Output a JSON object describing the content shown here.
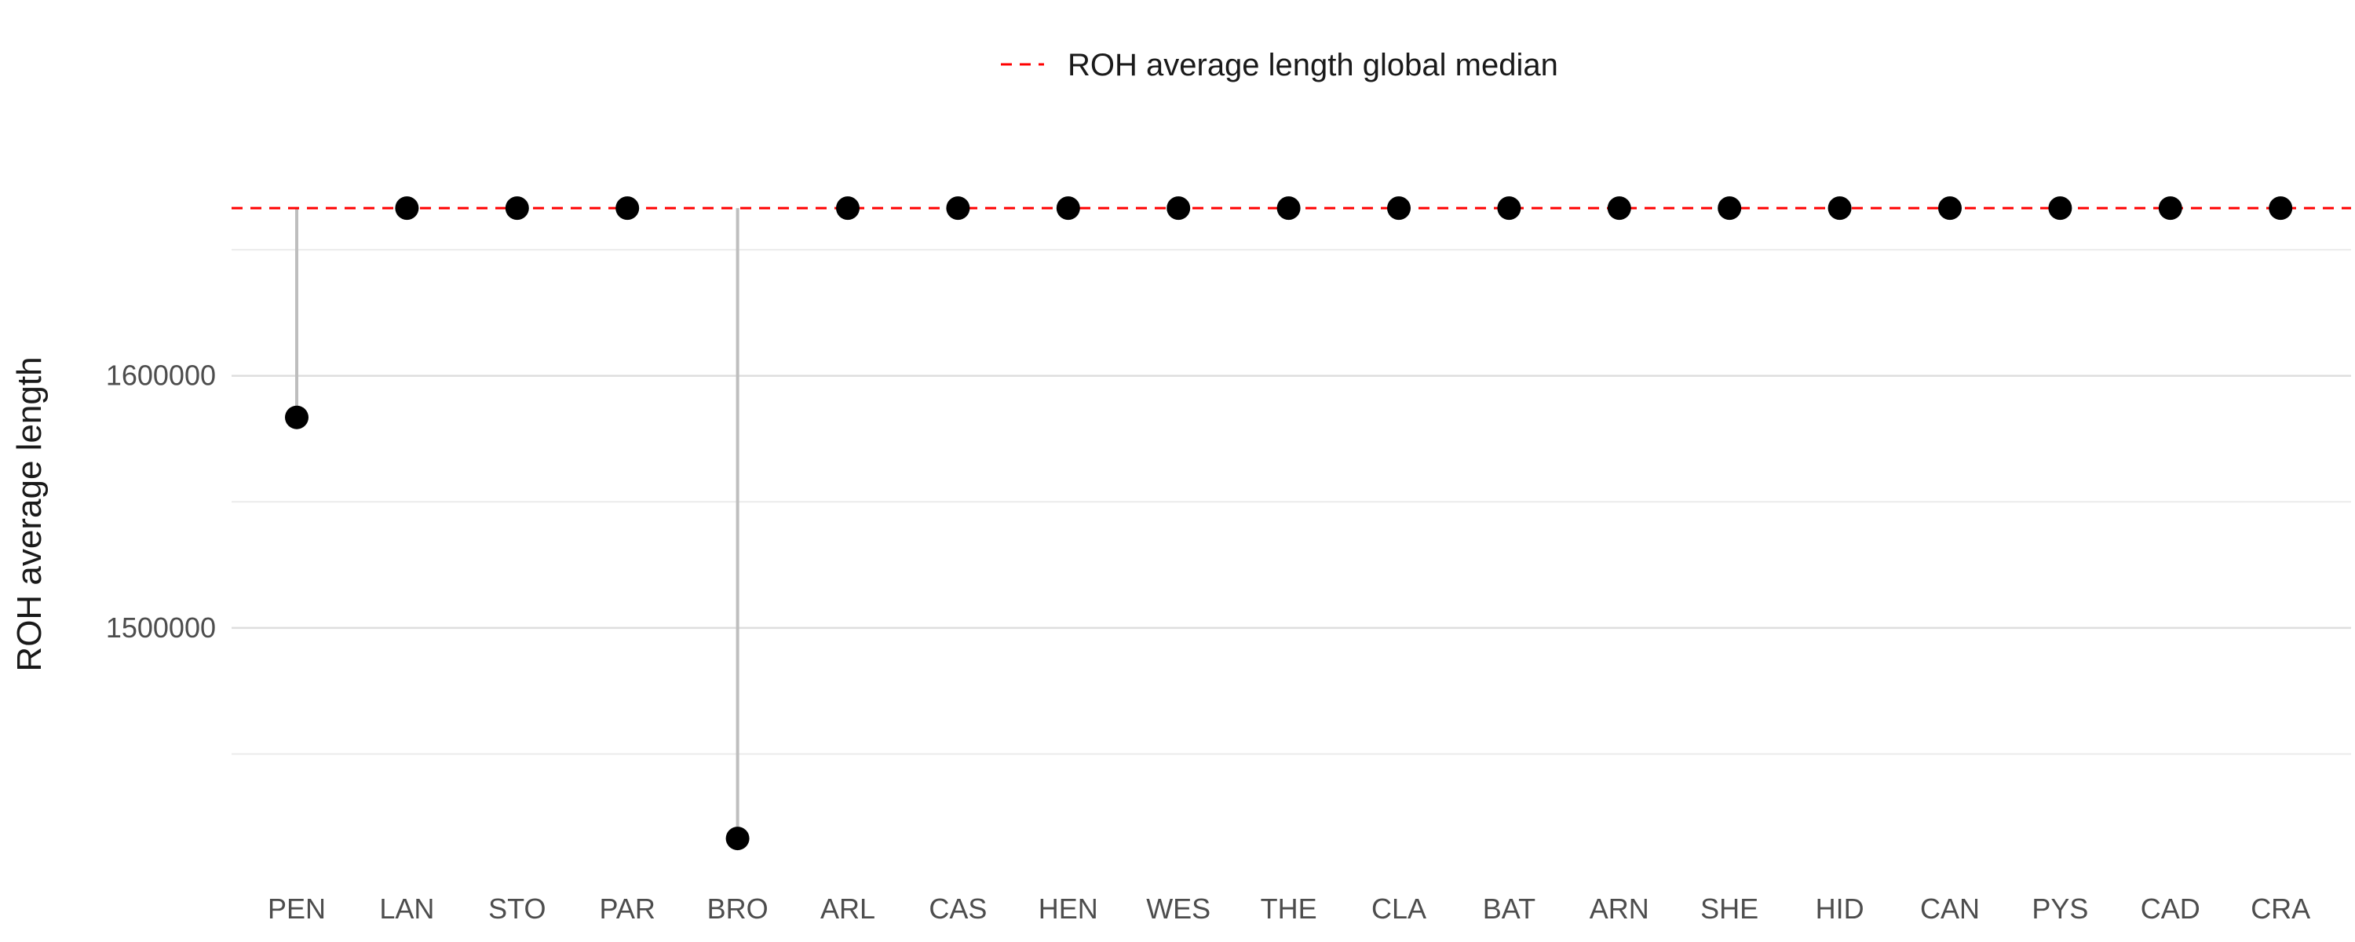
{
  "chart_data": {
    "type": "scatter",
    "title": "",
    "xlabel": "",
    "ylabel": "ROH average length",
    "categories": [
      "PEN",
      "LAN",
      "STO",
      "PAR",
      "BRO",
      "ARL",
      "CAS",
      "HEN",
      "WES",
      "THE",
      "CLA",
      "BAT",
      "ARN",
      "SHE",
      "HID",
      "CAN",
      "PYS",
      "CAD",
      "CRA"
    ],
    "series": [
      {
        "values": [
          1583500,
          1666500,
          1666500,
          1666500,
          1416500,
          1666500,
          1666500,
          1666500,
          1666500,
          1666500,
          1666500,
          1666500,
          1666500,
          1666500,
          1666500,
          1666500,
          1666500,
          1666500,
          1666500
        ]
      }
    ],
    "reference_line": {
      "name": "ROH average length global median",
      "value": 1666500,
      "color": "#ff0000",
      "style": "dashed"
    },
    "segment_color": "#bebebe",
    "point_color": "#000000",
    "ylim": [
      1405000,
      1693000
    ],
    "yticks": [
      1500000,
      1600000
    ],
    "yticks_labels": [
      "1500000",
      "1600000"
    ],
    "grid": true,
    "legend_position": "top"
  }
}
